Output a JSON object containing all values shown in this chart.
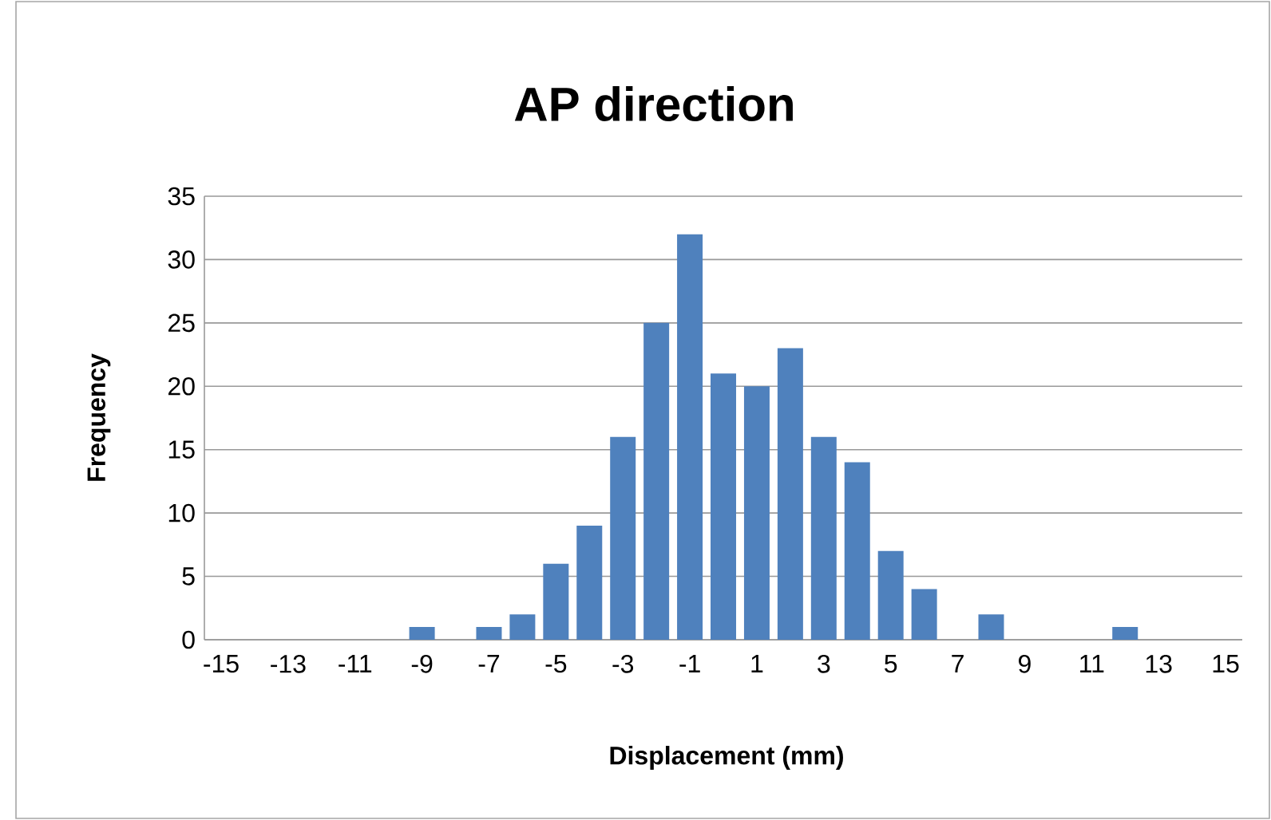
{
  "chart_data": {
    "type": "bar",
    "title": "AP direction",
    "xlabel": "Displacement (mm)",
    "ylabel": "Frequency",
    "categories": [
      "-15",
      null,
      "-13",
      null,
      "-11",
      null,
      "-9",
      null,
      "-7",
      null,
      "-5",
      null,
      "-3",
      null,
      "-1",
      null,
      "1",
      null,
      "3",
      null,
      "5",
      null,
      "7",
      null,
      "9",
      null,
      "11",
      null,
      "13",
      null,
      "15"
    ],
    "values": [
      0,
      0,
      0,
      0,
      0,
      0,
      1,
      0,
      1,
      2,
      6,
      9,
      16,
      25,
      32,
      21,
      20,
      23,
      16,
      14,
      7,
      4,
      0,
      2,
      0,
      0,
      0,
      1,
      0,
      0,
      0
    ],
    "color": "#4f81bd",
    "ylim": [
      0,
      35
    ],
    "yticks": [
      0,
      5,
      10,
      15,
      20,
      25,
      30,
      35
    ],
    "grid": "y"
  }
}
